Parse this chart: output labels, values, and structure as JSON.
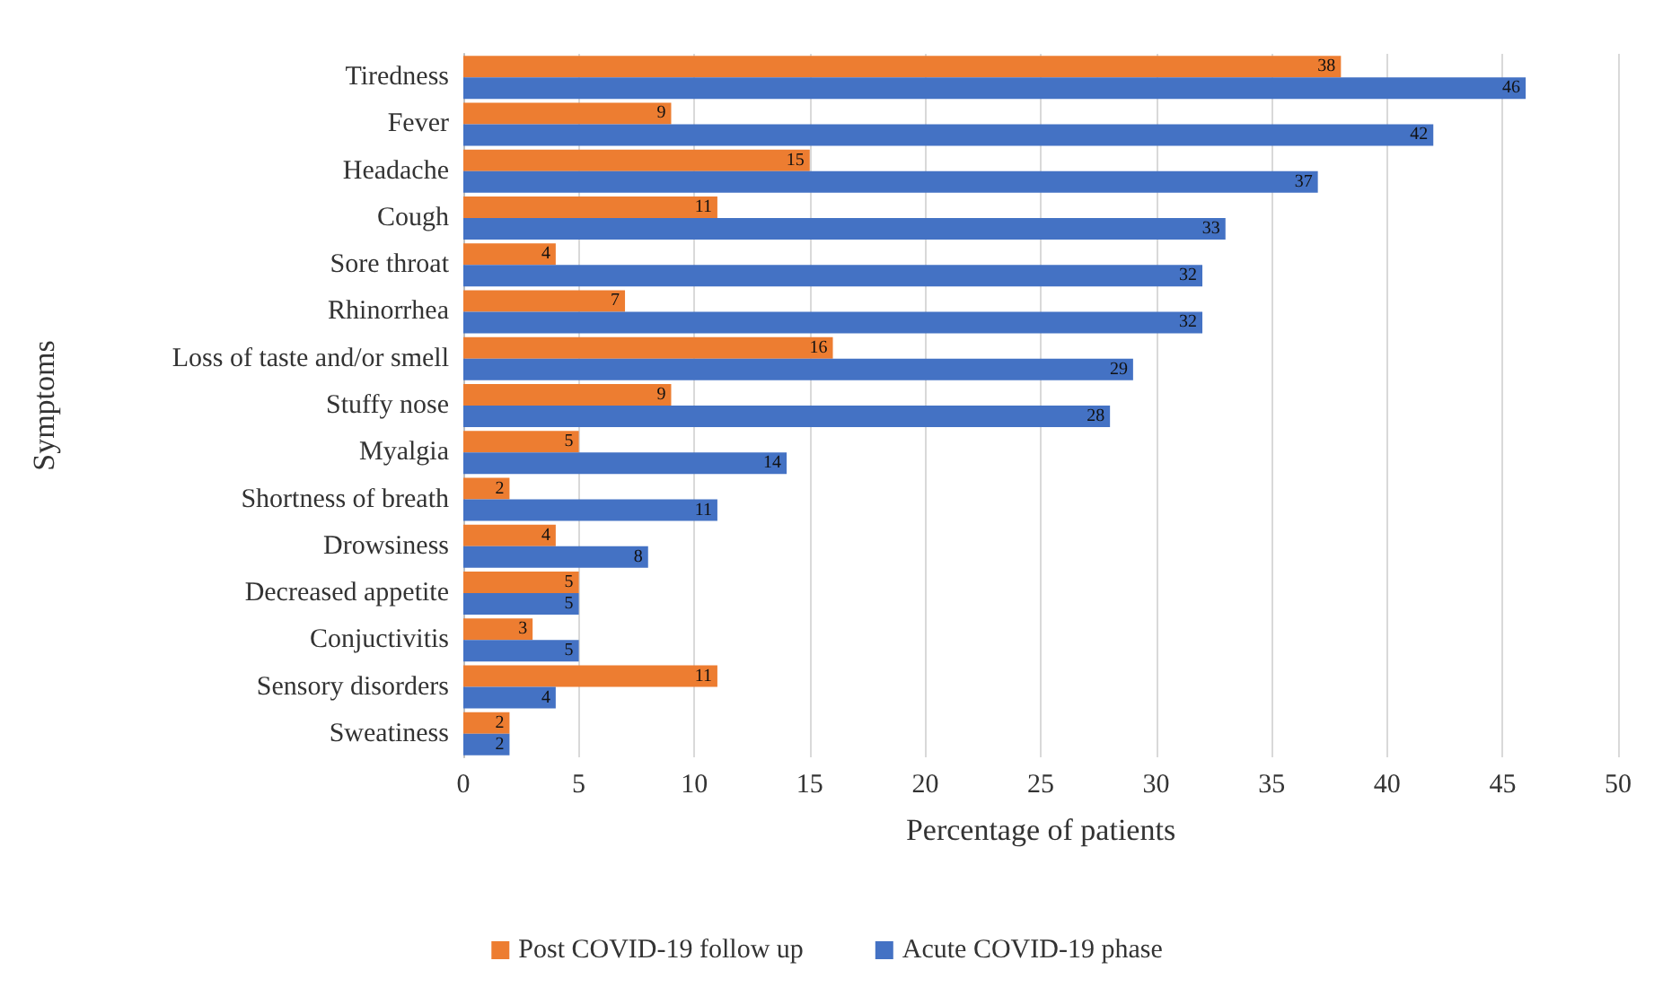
{
  "chart_data": {
    "type": "bar",
    "orientation": "horizontal",
    "xlabel": "Percentage of patients",
    "ylabel": "Symptoms",
    "categories": [
      "Tiredness",
      "Fever",
      "Headache",
      "Cough",
      "Sore throat",
      "Rhinorrhea",
      "Loss of taste and/or smell",
      "Stuffy nose",
      "Myalgia",
      "Shortness of breath",
      "Drowsiness",
      "Decreased appetite",
      "Conjuctivitis",
      "Sensory disorders",
      "Sweatiness"
    ],
    "series": [
      {
        "name": "Post COVID-19 follow up",
        "color": "#ed7d31",
        "values": [
          38,
          9,
          15,
          11,
          4,
          7,
          16,
          9,
          5,
          2,
          4,
          5,
          3,
          11,
          2
        ]
      },
      {
        "name": "Acute COVID-19 phase",
        "color": "#4472c4",
        "values": [
          46,
          42,
          37,
          33,
          32,
          32,
          29,
          28,
          14,
          11,
          8,
          5,
          5,
          4,
          2
        ]
      }
    ],
    "xlim": [
      0,
      50
    ],
    "xticks": [
      0,
      5,
      10,
      15,
      20,
      25,
      30,
      35,
      40,
      45,
      50
    ],
    "grid": "x",
    "legend": "bottom",
    "data_labels": true
  }
}
